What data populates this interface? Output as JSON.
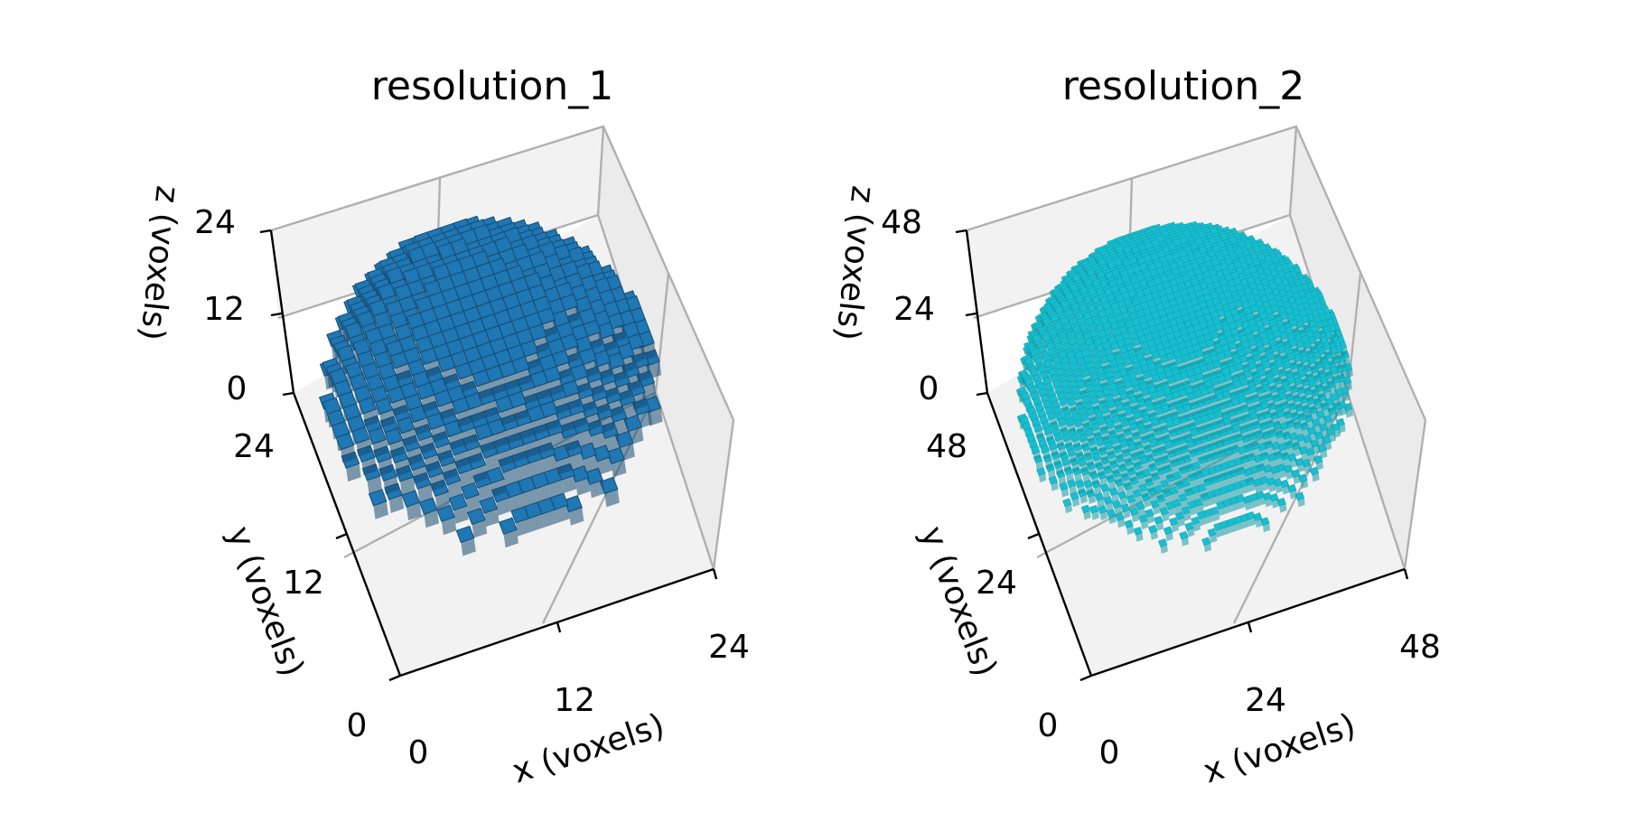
{
  "chart_data": [
    {
      "type": "voxel",
      "title": "resolution_1",
      "xlabel": "x (voxels)",
      "ylabel": "y (voxels)",
      "zlabel": "z (voxels)",
      "xticks": [
        "0",
        "12",
        "24"
      ],
      "yticks": [
        "0",
        "12",
        "24"
      ],
      "zticks": [
        "0",
        "12",
        "24"
      ],
      "xlim": [
        0,
        24
      ],
      "ylim": [
        0,
        24
      ],
      "zlim": [
        0,
        24
      ],
      "grid_size": 24,
      "shape": "sphere",
      "center": [
        12,
        12,
        12
      ],
      "radius": 12,
      "color": "#1f77b4",
      "edge_color": "#174d73"
    },
    {
      "type": "voxel",
      "title": "resolution_2",
      "xlabel": "x (voxels)",
      "ylabel": "y (voxels)",
      "zlabel": "z (voxels)",
      "xticks": [
        "0",
        "24",
        "48"
      ],
      "yticks": [
        "0",
        "24",
        "48"
      ],
      "zticks": [
        "0",
        "24",
        "48"
      ],
      "xlim": [
        0,
        48
      ],
      "ylim": [
        0,
        48
      ],
      "zlim": [
        0,
        48
      ],
      "grid_size": 48,
      "shape": "sphere",
      "center": [
        24,
        24,
        24
      ],
      "radius": 24,
      "color": "#17becf",
      "edge_color": "#129aa8"
    }
  ],
  "style": {
    "pane_color": "#f2f2f2",
    "grid_color": "#b0b0b0",
    "axis_color": "#000000"
  }
}
